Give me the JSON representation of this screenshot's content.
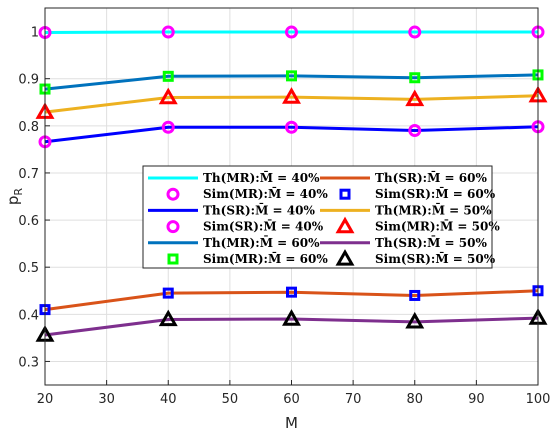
{
  "chart_data": {
    "type": "line",
    "xlabel": "M",
    "ylabel": "p",
    "ylabel_sub": "R",
    "xlim": [
      20,
      100
    ],
    "ylim": [
      0.25,
      1.05
    ],
    "xticks": [
      "20",
      "30",
      "40",
      "50",
      "60",
      "70",
      "80",
      "90",
      "100"
    ],
    "yticks": [
      "0.3",
      "0.4",
      "0.5",
      "0.6",
      "0.7",
      "0.8",
      "0.9",
      "1"
    ],
    "grid": true,
    "legend_placement": "center-right",
    "legend_columns": 2,
    "x": [
      20,
      40,
      60,
      80,
      100
    ],
    "series": [
      {
        "name": "Th(MR):M̄ = 40%",
        "kind": "line",
        "color": "#00FFFF",
        "values": [
          0.998,
          0.999,
          0.999,
          0.999,
          0.999
        ]
      },
      {
        "name": "Sim(MR):M̄ = 40%",
        "kind": "marker",
        "marker": "circle",
        "color": "#FF00FF",
        "values": [
          0.998,
          0.999,
          0.999,
          0.999,
          0.999
        ]
      },
      {
        "name": "Th(SR):M̄ = 40%",
        "kind": "line",
        "color": "#0000FF",
        "values": [
          0.766,
          0.797,
          0.797,
          0.79,
          0.798
        ]
      },
      {
        "name": "Sim(SR):M̄ = 40%",
        "kind": "marker",
        "marker": "circle",
        "color": "#FF00FF",
        "values": [
          0.766,
          0.797,
          0.797,
          0.79,
          0.798
        ]
      },
      {
        "name": "Th(MR):M̄ = 60%",
        "kind": "line",
        "color": "#0072BD",
        "values": [
          0.878,
          0.905,
          0.906,
          0.902,
          0.908
        ]
      },
      {
        "name": "Sim(MR):M̄ = 60%",
        "kind": "marker",
        "marker": "square",
        "color": "#00FF00",
        "values": [
          0.878,
          0.905,
          0.906,
          0.902,
          0.908
        ]
      },
      {
        "name": "Th(SR):M̄ = 60%",
        "kind": "line",
        "color": "#D95319",
        "values": [
          0.41,
          0.445,
          0.447,
          0.44,
          0.45
        ]
      },
      {
        "name": "Sim(SR):M̄ = 60%",
        "kind": "marker",
        "marker": "square",
        "color": "#0000FF",
        "values": [
          0.41,
          0.445,
          0.447,
          0.44,
          0.45
        ]
      },
      {
        "name": "Th(MR):M̄ = 50%",
        "kind": "line",
        "color": "#EDB120",
        "values": [
          0.829,
          0.86,
          0.861,
          0.856,
          0.864
        ]
      },
      {
        "name": "Sim(MR):M̄ = 50%",
        "kind": "marker",
        "marker": "triangle",
        "color": "#FF0000",
        "values": [
          0.829,
          0.86,
          0.861,
          0.856,
          0.864
        ]
      },
      {
        "name": "Th(SR):M̄ = 50%",
        "kind": "line",
        "color": "#7E2F8E",
        "values": [
          0.356,
          0.389,
          0.39,
          0.384,
          0.392
        ]
      },
      {
        "name": "Sim(SR):M̄ = 50%",
        "kind": "marker",
        "marker": "triangle",
        "color": "#000000",
        "values": [
          0.356,
          0.389,
          0.39,
          0.384,
          0.392
        ]
      }
    ]
  }
}
